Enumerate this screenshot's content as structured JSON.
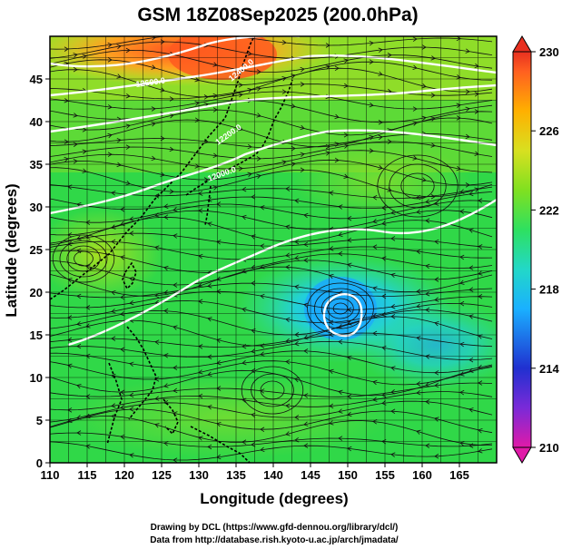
{
  "title": "GSM 18Z08Sep2025 (200.0hPa)",
  "chart_data": {
    "type": "heatmap",
    "title": "GSM 18Z08Sep2025 (200.0hPa)",
    "xlabel": "Longitude (degrees)",
    "ylabel": "Latitude  (degrees)",
    "xlim": [
      110,
      170
    ],
    "ylim": [
      0,
      50
    ],
    "x_ticks": [
      "110",
      "115",
      "120",
      "125",
      "130",
      "135",
      "140",
      "145",
      "150",
      "155",
      "160",
      "165"
    ],
    "y_ticks": [
      "0",
      "5",
      "10",
      "15",
      "20",
      "25",
      "30",
      "35",
      "40",
      "45"
    ],
    "grid": true,
    "colorbar": {
      "range": [
        210,
        230
      ],
      "ticks": [
        "210",
        "214",
        "218",
        "222",
        "226",
        "230"
      ],
      "colors": [
        "#e01aa8",
        "#7a2ad8",
        "#2030d0",
        "#1ab0ff",
        "#22d8c8",
        "#2ee060",
        "#80e020",
        "#d8e020",
        "#ffb000",
        "#ff6020",
        "#e83020"
      ]
    },
    "contour_labels": [
      "12600.0",
      "12400.0",
      "12200.0",
      "12000.0"
    ]
  },
  "credits": {
    "line1": "Drawing by DCL (https://www.gfd-dennou.org/library/dcl/)",
    "line2": "Data from http://database.rish.kyoto-u.ac.jp/arch/jmadata/"
  }
}
